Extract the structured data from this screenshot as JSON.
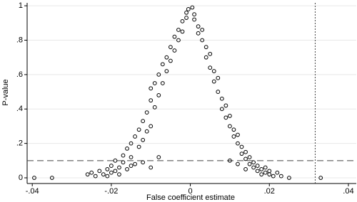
{
  "chart_data": {
    "type": "scatter",
    "xlabel": "False coefficient estimate",
    "ylabel": "P-value",
    "xlim": [
      -0.0413,
      0.042
    ],
    "ylim": [
      -0.033,
      1.017
    ],
    "xticks": [
      {
        "value": -0.04,
        "label": "-.04"
      },
      {
        "value": -0.02,
        "label": "-.02"
      },
      0,
      {
        "value": 0.02,
        "label": ".02"
      },
      {
        "value": 0.04,
        "label": ".04"
      }
    ],
    "yticks": [
      0,
      {
        "value": 0.2,
        "label": ".2"
      },
      {
        "value": 0.4,
        "label": ".4"
      },
      {
        "value": 0.6,
        "label": ".6"
      },
      {
        "value": 0.8,
        "label": ".8"
      },
      1
    ],
    "grid": true,
    "color": "#000000",
    "hline": 0.1,
    "vline": 0.0316,
    "x": [
      -0.0395,
      -0.035,
      -0.026,
      -0.025,
      -0.024,
      -0.023,
      -0.022,
      -0.021,
      -0.021,
      -0.02,
      -0.02,
      -0.019,
      -0.019,
      -0.018,
      -0.018,
      -0.017,
      -0.017,
      -0.016,
      -0.016,
      -0.015,
      -0.015,
      -0.014,
      -0.014,
      -0.013,
      -0.013,
      -0.012,
      -0.012,
      -0.011,
      -0.011,
      -0.01,
      -0.01,
      -0.01,
      -0.009,
      -0.009,
      -0.008,
      -0.008,
      -0.007,
      -0.007,
      -0.006,
      -0.006,
      -0.005,
      -0.005,
      -0.004,
      -0.004,
      -0.003,
      -0.003,
      -0.002,
      -0.002,
      -0.001,
      -0.001,
      -0.0005,
      -0.01,
      -0.012,
      -0.008,
      -0.015,
      0.0005,
      0.001,
      0.001,
      0.002,
      0.002,
      0.003,
      0.003,
      0.004,
      0.004,
      0.005,
      0.005,
      0.006,
      0.006,
      0.007,
      0.007,
      0.008,
      0.008,
      0.009,
      0.009,
      0.01,
      0.01,
      0.011,
      0.011,
      0.012,
      0.012,
      0.013,
      0.013,
      0.014,
      0.014,
      0.015,
      0.015,
      0.016,
      0.016,
      0.017,
      0.017,
      0.018,
      0.018,
      0.019,
      0.019,
      0.02,
      0.02,
      0.021,
      0.022,
      0.023,
      0.025,
      0.033,
      0.01,
      0.012,
      0.014
    ],
    "values": [
      0,
      0,
      0.02,
      0.03,
      0.01,
      0.04,
      0.02,
      0.05,
      0.01,
      0.03,
      0.07,
      0.04,
      0.1,
      0.06,
      0.02,
      0.09,
      0.13,
      0.05,
      0.17,
      0.12,
      0.2,
      0.08,
      0.24,
      0.18,
      0.28,
      0.22,
      0.33,
      0.27,
      0.38,
      0.3,
      0.45,
      0.52,
      0.41,
      0.55,
      0.48,
      0.6,
      0.55,
      0.66,
      0.62,
      0.7,
      0.68,
      0.76,
      0.74,
      0.82,
      0.8,
      0.86,
      0.85,
      0.91,
      0.93,
      0.96,
      0.98,
      0.06,
      0.09,
      0.12,
      0.07,
      0.99,
      0.95,
      0.92,
      0.88,
      0.84,
      0.8,
      0.86,
      0.76,
      0.7,
      0.72,
      0.64,
      0.62,
      0.56,
      0.58,
      0.5,
      0.46,
      0.4,
      0.42,
      0.35,
      0.36,
      0.3,
      0.28,
      0.24,
      0.25,
      0.2,
      0.18,
      0.14,
      0.15,
      0.11,
      0.12,
      0.08,
      0.09,
      0.06,
      0.07,
      0.04,
      0.05,
      0.02,
      0.03,
      0.06,
      0.02,
      0.04,
      0.01,
      0.03,
      0.01,
      0,
      0,
      0.1,
      0.08,
      0.05
    ]
  }
}
